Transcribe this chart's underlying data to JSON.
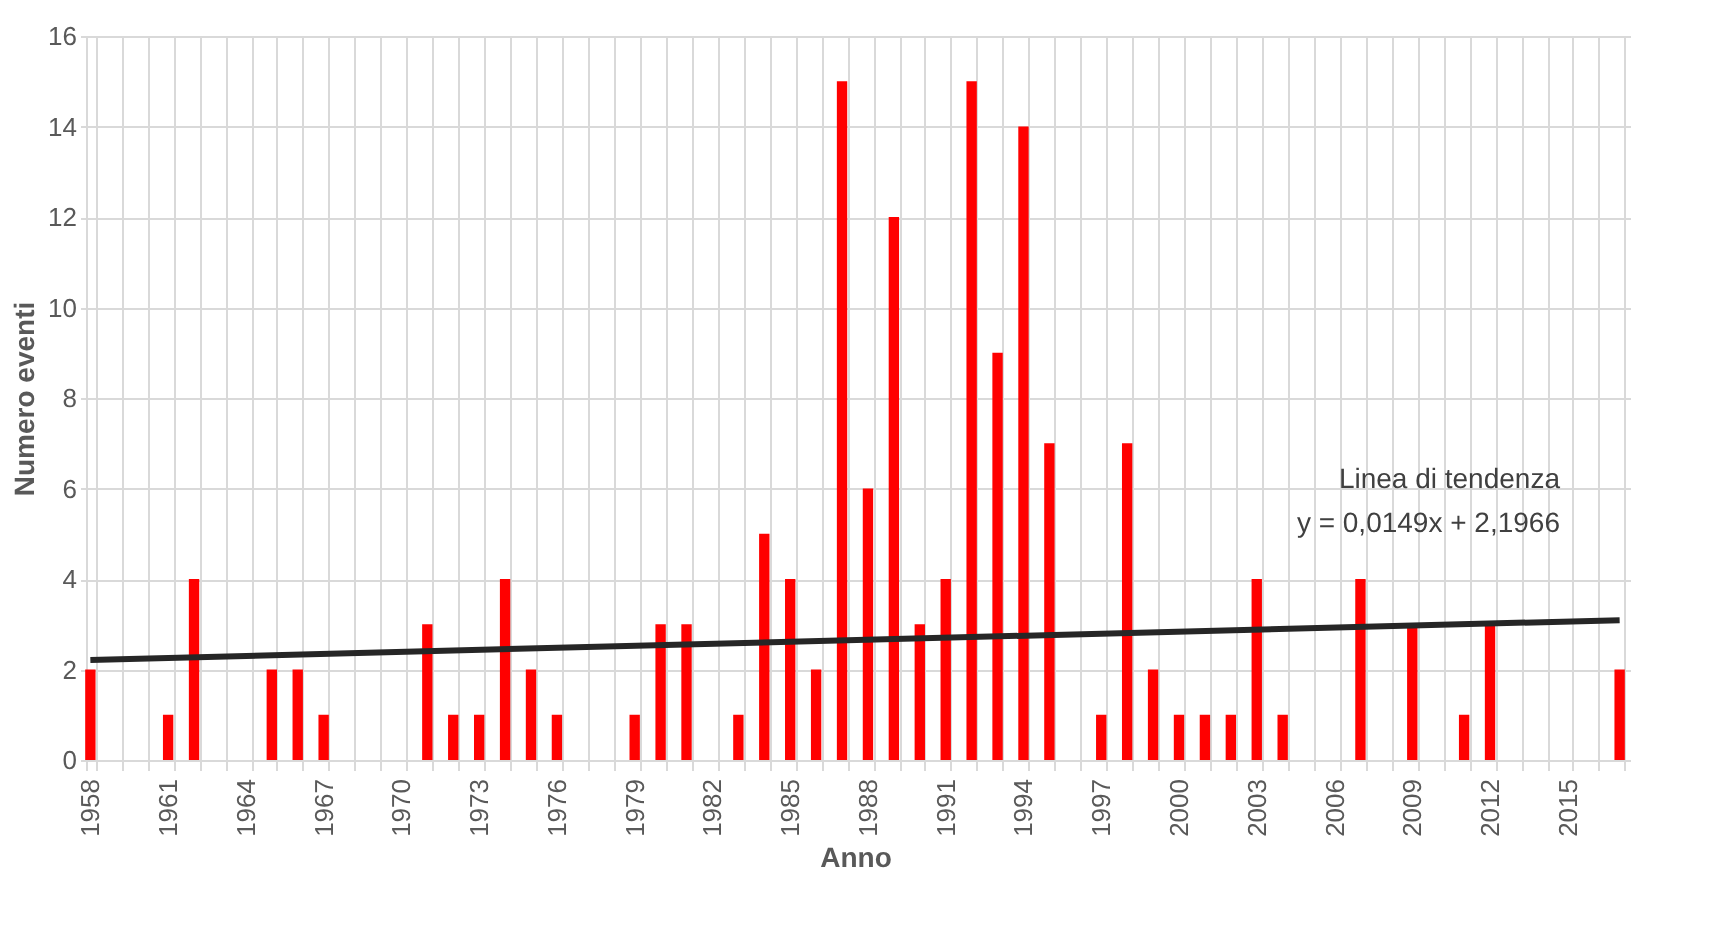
{
  "chart_data": {
    "type": "bar",
    "xlabel": "Anno",
    "ylabel": "Numero eventi",
    "categories": [
      "1958",
      null,
      null,
      "1961",
      null,
      null,
      "1964",
      null,
      null,
      "1967",
      null,
      null,
      "1970",
      null,
      null,
      "1973",
      null,
      null,
      "1976",
      null,
      null,
      "1979",
      null,
      null,
      "1982",
      null,
      null,
      "1985",
      null,
      null,
      "1988",
      null,
      null,
      "1991",
      null,
      null,
      "1994",
      null,
      null,
      "1997",
      null,
      null,
      "2000",
      null,
      null,
      "2003",
      null,
      null,
      "2006",
      null,
      null,
      "2009",
      null,
      null,
      "2012",
      null,
      null,
      "2015",
      null,
      null
    ],
    "series": [
      {
        "type": "bar",
        "color": "#ff0000",
        "values": [
          2,
          0,
          0,
          1,
          4,
          0,
          0,
          2,
          2,
          1,
          0,
          0,
          0,
          3,
          1,
          1,
          4,
          2,
          1,
          0,
          0,
          1,
          3,
          3,
          0,
          1,
          5,
          4,
          2,
          15,
          6,
          12,
          3,
          4,
          15,
          9,
          14,
          7,
          0,
          1,
          7,
          2,
          1,
          1,
          1,
          4,
          1,
          0,
          0,
          4,
          0,
          3,
          0,
          1,
          3,
          0,
          0,
          0,
          0,
          2
        ]
      },
      {
        "type": "line",
        "name": "Linea di tendenza",
        "color": "#262626",
        "values": [
          2.21,
          null,
          null,
          null,
          null,
          null,
          null,
          null,
          null,
          null,
          null,
          null,
          null,
          null,
          null,
          null,
          null,
          null,
          null,
          null,
          null,
          null,
          null,
          null,
          null,
          null,
          null,
          null,
          null,
          null,
          null,
          null,
          null,
          null,
          null,
          null,
          null,
          null,
          null,
          null,
          null,
          null,
          null,
          null,
          null,
          null,
          null,
          null,
          null,
          null,
          null,
          null,
          null,
          null,
          null,
          null,
          null,
          null,
          null,
          3.09
        ]
      }
    ],
    "annotations": [
      "y = 0,0149x + 2,1966"
    ],
    "ylim": [
      0,
      16
    ],
    "yticks": [
      0,
      2,
      4,
      6,
      8,
      10,
      12,
      14,
      16
    ],
    "grid": true
  }
}
